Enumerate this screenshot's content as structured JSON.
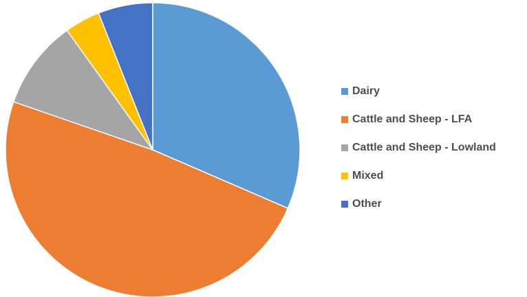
{
  "chart_data": {
    "type": "pie",
    "title": "",
    "categories": [
      "Dairy",
      "Cattle and Sheep - LFA",
      "Cattle and Sheep - Lowland",
      "Mixed",
      "Other"
    ],
    "values": [
      31.5,
      48.8,
      9.8,
      3.9,
      6.0
    ],
    "colors": [
      "#5b9bd5",
      "#ed7d31",
      "#a5a5a5",
      "#ffc000",
      "#4472c4"
    ],
    "legend_position": "right",
    "start_angle": "top",
    "direction": "clockwise"
  }
}
